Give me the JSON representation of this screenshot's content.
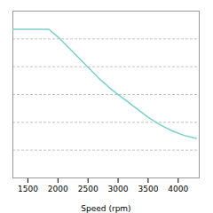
{
  "chart_data": {
    "type": "line",
    "xlabel": "Speed (rpm)",
    "x": [
      1250,
      1850,
      2000,
      2150,
      2300,
      2500,
      2700,
      2900,
      3100,
      3300,
      3500,
      3700,
      3900,
      4100,
      4300
    ],
    "values": [
      0.98,
      0.98,
      0.93,
      0.87,
      0.81,
      0.73,
      0.65,
      0.58,
      0.52,
      0.46,
      0.4,
      0.35,
      0.31,
      0.28,
      0.26
    ],
    "color": "#7dcfcf",
    "xlim": [
      1250,
      4350
    ],
    "xticks": [
      1500,
      2000,
      2500,
      3000,
      3500,
      4000
    ],
    "ylim": [
      0.0,
      1.1
    ],
    "yticks": [
      0.0,
      0.18333333333333335,
      0.3666666666666667,
      0.55,
      0.7333333333333334,
      0.9166666666666667,
      1.1
    ],
    "grid": "y",
    "tick_labels": "x"
  }
}
